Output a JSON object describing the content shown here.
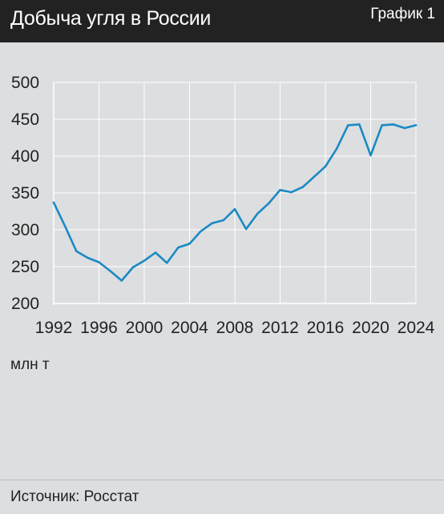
{
  "header": {
    "title": "Добыча угля в России",
    "graph_label": "График 1"
  },
  "unit_label": "млн т",
  "source": "Источник: Росстат",
  "colors": {
    "header_bg": "#222222",
    "background": "#dcdee0",
    "line": "#1a8ac4",
    "grid": "#ffffff"
  },
  "chart_data": {
    "type": "line",
    "title": "Добыча угля в России",
    "xlabel": "",
    "ylabel": "млн т",
    "ylim": [
      200,
      500
    ],
    "xlim": [
      1992,
      2024
    ],
    "y_ticks": [
      500,
      450,
      400,
      350,
      300,
      250,
      200
    ],
    "x_ticks": [
      1992,
      1996,
      2000,
      2004,
      2008,
      2012,
      2016,
      2020,
      2024
    ],
    "grid": true,
    "series": [
      {
        "name": "",
        "x": [
          1992,
          1993,
          1994,
          1995,
          1996,
          1997,
          1998,
          1999,
          2000,
          2001,
          2002,
          2003,
          2004,
          2005,
          2006,
          2007,
          2008,
          2009,
          2010,
          2011,
          2012,
          2013,
          2014,
          2015,
          2016,
          2017,
          2018,
          2019,
          2020,
          2021,
          2022,
          2023,
          2024
        ],
        "y": [
          337,
          305,
          271,
          262,
          256,
          244,
          231,
          249,
          258,
          269,
          255,
          276,
          281,
          298,
          309,
          313,
          328,
          301,
          322,
          336,
          354,
          351,
          358,
          372,
          386,
          410,
          442,
          443,
          401,
          442,
          443,
          438,
          442
        ]
      }
    ]
  }
}
